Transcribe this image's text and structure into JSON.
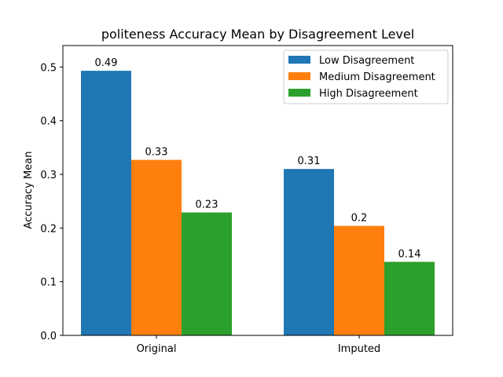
{
  "chart_data": {
    "type": "bar",
    "title": "politeness Accuracy Mean by Disagreement Level",
    "xlabel": "",
    "ylabel": "Accuracy Mean",
    "categories": [
      "Original",
      "Imputed"
    ],
    "series": [
      {
        "name": "Low Disagreement",
        "values": [
          0.493,
          0.31
        ],
        "labels": [
          "0.49",
          "0.31"
        ],
        "color": "#1f77b4"
      },
      {
        "name": "Medium Disagreement",
        "values": [
          0.327,
          0.204
        ],
        "labels": [
          "0.33",
          "0.2"
        ],
        "color": "#ff7f0e"
      },
      {
        "name": "High Disagreement",
        "values": [
          0.229,
          0.137
        ],
        "labels": [
          "0.23",
          "0.14"
        ],
        "color": "#2ca02c"
      }
    ],
    "ylim": [
      0,
      0.54
    ],
    "yticks": [
      "0.0",
      "0.1",
      "0.2",
      "0.3",
      "0.4",
      "0.5"
    ],
    "legend_position": "top-right",
    "grid": false
  }
}
